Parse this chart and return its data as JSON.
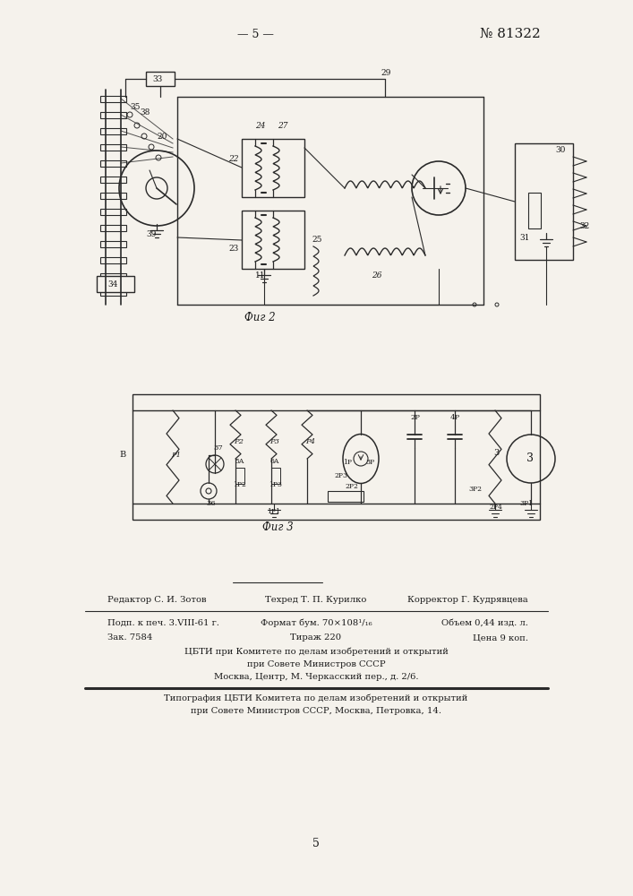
{
  "page_number": "— 5 —",
  "patent_number": "№ 81322",
  "fig2_label": "Фиг 2",
  "fig3_label": "Фиг 3",
  "footer_line1_left": "Редактор С. И. Зотов",
  "footer_line1_mid": "Техред Т. П. Курилко",
  "footer_line1_right": "Корректор Г. Кудрявцева",
  "footer_line2_left": "Подп. к печ. 3.VIII-61 г.",
  "footer_line2_mid": "Формат бум. 70×108¹/₁₆",
  "footer_line2_right": "Объем 0,44 изд. л.",
  "footer_line3_left": "Зак. 7584",
  "footer_line3_mid": "Тираж 220",
  "footer_line3_right": "Цена 9 коп.",
  "footer_org1": "ЦБТИ при Комитете по делам изобретений и открытий",
  "footer_org2": "при Совете Министров СССР",
  "footer_org3": "Москва, Центр, М. Черкасский пер., д. 2/6.",
  "footer_print1": "Типография ЦБТИ Комитета по делам изобретений и открытий",
  "footer_print2": "при Совете Министров СССР, Москва, Петровка, 14.",
  "page_bottom": "5",
  "bg_color": "#f5f2ec",
  "text_color": "#1a1a1a",
  "diagram_color": "#2a2a2a"
}
